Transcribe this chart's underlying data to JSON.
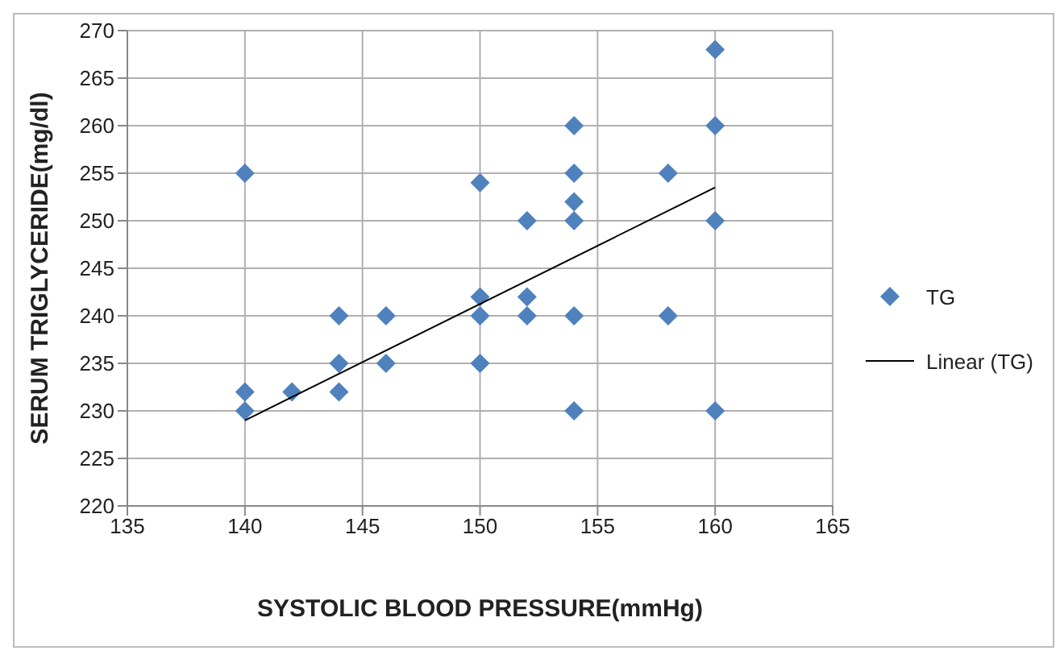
{
  "chart_data": {
    "type": "scatter",
    "xlabel": "SYSTOLIC BLOOD PRESSURE(mmHg)",
    "ylabel": "SERUM TRIGLYCERIDE(mg/dl)",
    "xlim": [
      135,
      165
    ],
    "xticks": [
      135,
      140,
      145,
      150,
      155,
      160,
      165
    ],
    "ylim": [
      220,
      270
    ],
    "yticks": [
      220,
      225,
      230,
      235,
      240,
      245,
      250,
      255,
      260,
      265,
      270
    ],
    "grid": true,
    "legend": "right",
    "marker": "diamond",
    "series": [
      {
        "name": "TG",
        "color": "#4f81bd",
        "x": [
          140,
          140,
          140,
          142,
          144,
          144,
          144,
          146,
          146,
          150,
          150,
          150,
          150,
          152,
          152,
          152,
          154,
          154,
          154,
          154,
          154,
          154,
          158,
          158,
          160,
          160,
          160,
          160
        ],
        "values": [
          255,
          232,
          230,
          232,
          240,
          235,
          232,
          240,
          235,
          254,
          242,
          240,
          235,
          250,
          242,
          240,
          260,
          255,
          252,
          250,
          240,
          230,
          255,
          240,
          268,
          260,
          250,
          230
        ]
      },
      {
        "name": "Linear (TG)",
        "type": "line",
        "color": "#000000",
        "line_style": "solid",
        "marker": "none",
        "x": [
          140,
          160
        ],
        "values": [
          229,
          253.5
        ]
      }
    ]
  }
}
